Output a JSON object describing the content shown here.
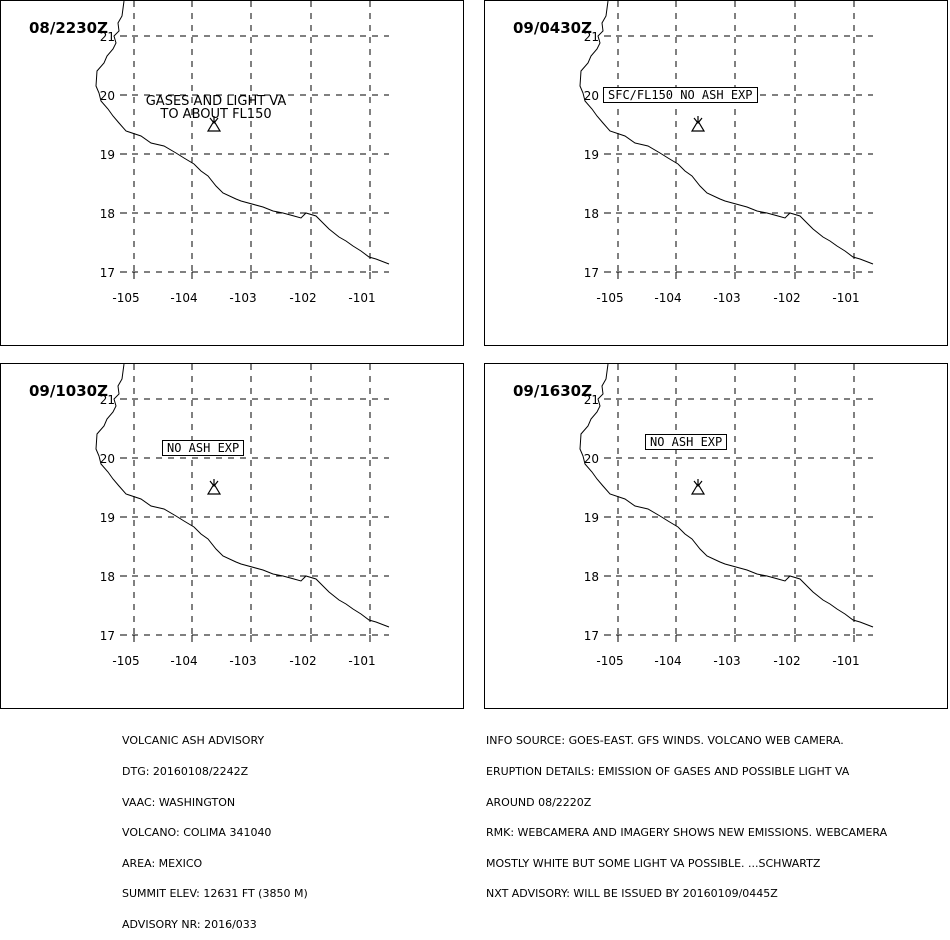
{
  "panels": [
    {
      "time": "08/2230Z",
      "label": "GASES AND LIGHT VA\nTO ABOUT FL150",
      "label_style": "plain"
    },
    {
      "time": "09/0430Z",
      "label": "SFC/FL150 NO ASH EXP",
      "label_style": "boxed"
    },
    {
      "time": "09/1030Z",
      "label": "NO ASH EXP",
      "label_style": "boxed"
    },
    {
      "time": "09/1630Z",
      "label": "NO ASH EXP",
      "label_style": "boxed"
    }
  ],
  "axes": {
    "lat_ticks": [
      "21",
      "20",
      "19",
      "18",
      "17"
    ],
    "lon_ticks": [
      "-105",
      "-104",
      "-103",
      "-102",
      "-101"
    ]
  },
  "advisory": {
    "lines": [
      "VOLCANIC ASH ADVISORY",
      "DTG: 20160108/2242Z",
      "VAAC: WASHINGTON",
      "VOLCANO: COLIMA 341040",
      "AREA: MEXICO",
      "SUMMIT ELEV: 12631 FT (3850 M)",
      "ADVISORY NR: 2016/033"
    ]
  },
  "info": {
    "lines": [
      "INFO SOURCE: GOES-EAST. GFS WINDS. VOLCANO WEB CAMERA.",
      "ERUPTION DETAILS: EMISSION OF GASES AND POSSIBLE LIGHT VA",
      "AROUND 08/2220Z",
      "RMK: WEBCAMERA AND IMAGERY SHOWS NEW EMISSIONS. WEBCAMERA",
      "MOSTLY WHITE BUT SOME LIGHT VA POSSIBLE. ...SCHWARTZ",
      "NXT ADVISORY: WILL BE ISSUED BY 20160109/0445Z"
    ]
  },
  "colors": {
    "line": "#000000",
    "background": "#ffffff"
  },
  "icons": {
    "volcano": "volcano-icon"
  }
}
